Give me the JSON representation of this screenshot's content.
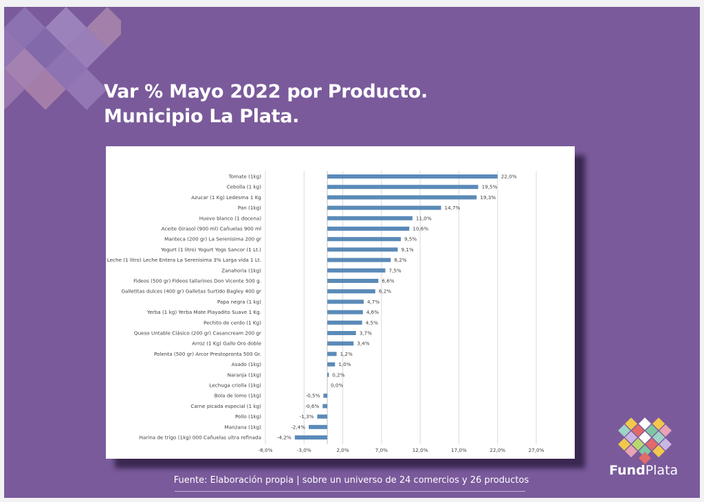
{
  "slide": {
    "title_line1": "Var % Mayo 2022 por Producto.",
    "title_line2": "Municipio La Plata.",
    "footer": "Fuente: Elaboración propia | sobre un universo de 24 comercios y 26 productos",
    "logo_text_bold": "Fund",
    "logo_text_regular": "Plata",
    "background_color": "#7a5a9b"
  },
  "chart_data": {
    "type": "bar",
    "orientation": "horizontal",
    "categories": [
      "Tomate (1kg)",
      "Cebolla (1 kg)",
      "Azucar (1 Kg) Ledesma 1 Kg",
      "Pan (1kg)",
      "Huevo blanco (1 docena)",
      "Aceite Girasol (900 ml) Cañuelas 900 ml",
      "Manteca (200 gr) La Serenisima 200 gr",
      "Yogurt (1 litro) Yogurt Yogs Sancor (1 Lt.)",
      "Leche (1 litro) Leche Entera La Serenisima 3% Larga vida 1 Lt.",
      "Zanahoria (1kg)",
      "Fideos (500 gr) Fideos tallarines Don Vicente 500 g.",
      "Galletitas dulces (400 gr) Galletas Surtido Bagley 400 gr",
      "Papa negra (1 kg)",
      "Yerba (1 kg) Yerba Mate Playadito Suave 1 Kg.",
      "Pechito de cerdo (1 Kg)",
      "Queso Untable Clásico (200 gr) Casancream 200 gr",
      "Arroz (1 Kg) Gallo Oro doble",
      "Polenta (500 gr) Arcor Prestopronta 500 Gr.",
      "Asado (1kg)",
      "Naranja (1kg)",
      "Lechuga criolla (1kg)",
      "Bola de lomo (1kg)",
      "Carne picada especial (1 kg)",
      "Pollo (1kg)",
      "Manzana (1kg)",
      "Harina de trigo (1kg) 000 Cañuelas ultra refinada"
    ],
    "values": [
      22.0,
      19.5,
      19.3,
      14.7,
      11.0,
      10.6,
      9.5,
      9.1,
      8.2,
      7.5,
      6.6,
      6.2,
      4.7,
      4.6,
      4.5,
      3.7,
      3.4,
      1.2,
      1.0,
      0.2,
      0.0,
      -0.5,
      -0.6,
      -1.3,
      -2.4,
      -4.2
    ],
    "value_labels": [
      "22,0%",
      "19,5%",
      "19,3%",
      "14,7%",
      "11,0%",
      "10,6%",
      "9,5%",
      "9,1%",
      "8,2%",
      "7,5%",
      "6,6%",
      "6,2%",
      "4,7%",
      "4,6%",
      "4,5%",
      "3,7%",
      "3,4%",
      "1,2%",
      "1,0%",
      "0,2%",
      "0,0%",
      "-0,5%",
      "-0,6%",
      "-1,3%",
      "-2,4%",
      "-4,2%"
    ],
    "x_ticks": [
      -8,
      -3,
      2,
      7,
      12,
      17,
      22,
      27
    ],
    "x_tick_labels": [
      "-8,0%",
      "-3,0%",
      "2,0%",
      "7,0%",
      "12,0%",
      "17,0%",
      "22,0%",
      "27,0%"
    ],
    "xlim": [
      -8,
      27
    ],
    "grid": "vertical",
    "bar_color": "#5b8ab8",
    "title": "",
    "xlabel": "",
    "ylabel": ""
  }
}
